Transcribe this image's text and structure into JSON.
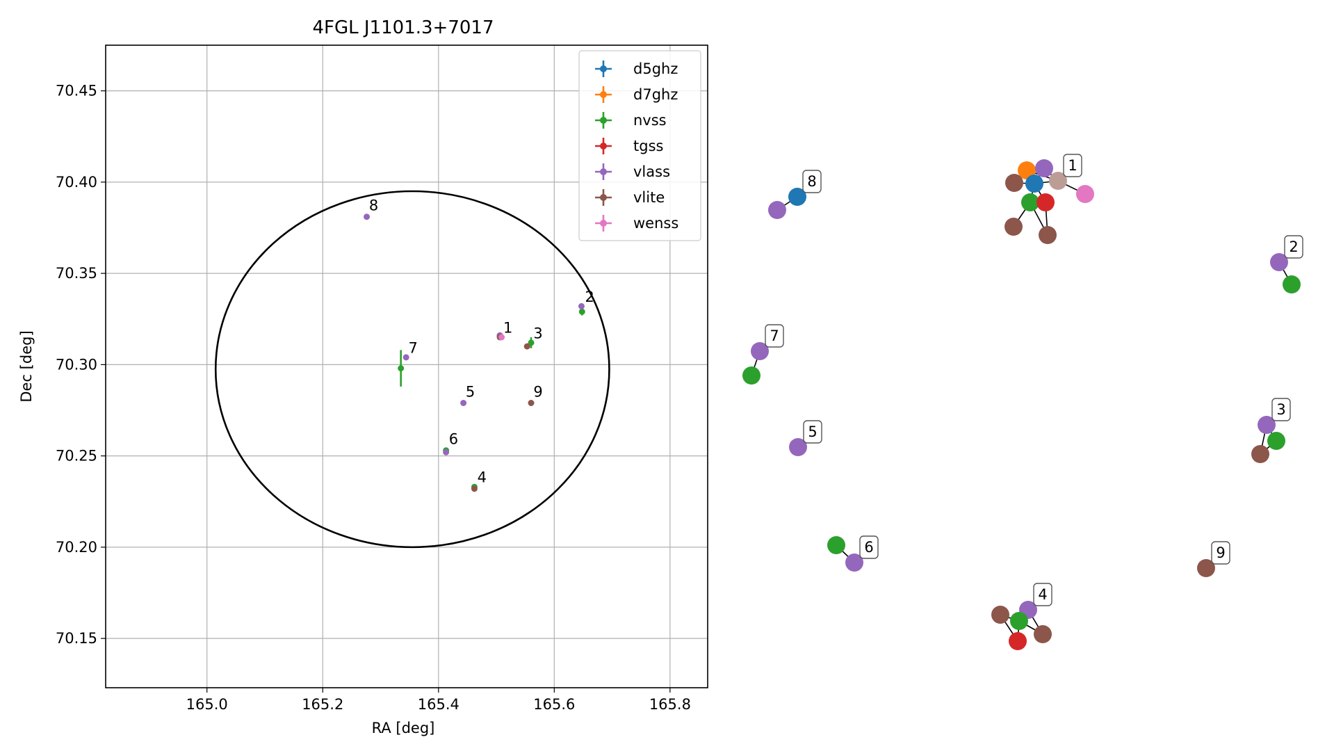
{
  "chart_data": [
    {
      "type": "scatter",
      "title": "4FGL J1101.3+7017",
      "xlabel": "RA [deg]",
      "ylabel": "Dec [deg]",
      "xlim": [
        164.825,
        165.865
      ],
      "ylim": [
        70.123,
        70.475
      ],
      "xticks": [
        165.0,
        165.2,
        165.4,
        165.6,
        165.8
      ],
      "xtick_labels": [
        "165.0",
        "165.2",
        "165.4",
        "165.6",
        "165.8"
      ],
      "yticks": [
        70.15,
        70.2,
        70.25,
        70.3,
        70.35,
        70.4,
        70.45
      ],
      "ytick_labels": [
        "70.15",
        "70.20",
        "70.25",
        "70.30",
        "70.35",
        "70.40",
        "70.45"
      ],
      "grid": true,
      "legend_position": "top-right",
      "error_ellipse": {
        "center": [
          165.355,
          70.2975
        ],
        "semi_axis_ra": 0.34,
        "semi_axis_dec": 0.0975
      },
      "series": [
        {
          "name": "d5ghz",
          "color": "#1f77b4",
          "points": []
        },
        {
          "name": "d7ghz",
          "color": "#ff7f0e",
          "points": []
        },
        {
          "name": "nvss",
          "color": "#2ca02c",
          "points": [
            {
              "x": 165.648,
              "y": 70.329,
              "yerr": 0.002
            },
            {
              "x": 165.56,
              "y": 70.312,
              "yerr": 0.003
            },
            {
              "x": 165.335,
              "y": 70.298,
              "yerr": 0.01
            },
            {
              "x": 165.413,
              "y": 70.253,
              "yerr": 0.001
            },
            {
              "x": 165.462,
              "y": 70.233,
              "yerr": 0.0
            }
          ]
        },
        {
          "name": "tgss",
          "color": "#d62728",
          "points": [
            {
              "x": 165.506,
              "y": 70.316,
              "yerr": 0.0
            }
          ]
        },
        {
          "name": "vlass",
          "color": "#9467bd",
          "points": [
            {
              "x": 165.276,
              "y": 70.381,
              "yerr": 0.0
            },
            {
              "x": 165.647,
              "y": 70.332,
              "yerr": 0.0
            },
            {
              "x": 165.506,
              "y": 70.316,
              "yerr": 0.0
            },
            {
              "x": 165.344,
              "y": 70.304,
              "yerr": 0.0
            },
            {
              "x": 165.443,
              "y": 70.279,
              "yerr": 0.0
            },
            {
              "x": 165.413,
              "y": 70.252,
              "yerr": 0.0
            }
          ]
        },
        {
          "name": "vlite",
          "color": "#8c564b",
          "points": [
            {
              "x": 165.553,
              "y": 70.31,
              "yerr": 0.0
            },
            {
              "x": 165.56,
              "y": 70.279,
              "yerr": 0.0
            },
            {
              "x": 165.462,
              "y": 70.232,
              "yerr": 0.0
            },
            {
              "x": 165.506,
              "y": 70.315,
              "yerr": 0.0
            }
          ]
        },
        {
          "name": "wenss",
          "color": "#e377c2",
          "points": [
            {
              "x": 165.509,
              "y": 70.315,
              "yerr": 0.0
            }
          ]
        }
      ],
      "source_labels": [
        {
          "text": "1",
          "x": 165.512,
          "y": 70.316
        },
        {
          "text": "2",
          "x": 165.653,
          "y": 70.333
        },
        {
          "text": "3",
          "x": 165.564,
          "y": 70.313
        },
        {
          "text": "4",
          "x": 165.467,
          "y": 70.234
        },
        {
          "text": "5",
          "x": 165.447,
          "y": 70.281
        },
        {
          "text": "6",
          "x": 165.418,
          "y": 70.255
        },
        {
          "text": "7",
          "x": 165.348,
          "y": 70.305
        },
        {
          "text": "8",
          "x": 165.28,
          "y": 70.383
        },
        {
          "text": "9",
          "x": 165.564,
          "y": 70.281
        }
      ]
    },
    {
      "type": "network",
      "nodes": [
        {
          "id": "n8a",
          "color": "#9467bd"
        },
        {
          "id": "n8b",
          "color": "#1f77b4"
        },
        {
          "id": "n1a",
          "color": "#ff7f0e"
        },
        {
          "id": "n1b",
          "color": "#9467bd"
        },
        {
          "id": "n1c",
          "color": "#1f77b4"
        },
        {
          "id": "n1d",
          "color": "#8c564b"
        },
        {
          "id": "n1e",
          "color": "#2ca02c"
        },
        {
          "id": "n1f",
          "color": "#d62728"
        },
        {
          "id": "n1g",
          "color": "#8c564b"
        },
        {
          "id": "n1h",
          "color": "#8c564b"
        },
        {
          "id": "n1i",
          "color": "#e377c2"
        },
        {
          "id": "n1j",
          "color": "#bc9d96"
        },
        {
          "id": "n2a",
          "color": "#9467bd"
        },
        {
          "id": "n2b",
          "color": "#2ca02c"
        },
        {
          "id": "n7a",
          "color": "#9467bd"
        },
        {
          "id": "n7b",
          "color": "#2ca02c"
        },
        {
          "id": "n5a",
          "color": "#9467bd"
        },
        {
          "id": "n3a",
          "color": "#9467bd"
        },
        {
          "id": "n3b",
          "color": "#2ca02c"
        },
        {
          "id": "n3c",
          "color": "#8c564b"
        },
        {
          "id": "n6a",
          "color": "#2ca02c"
        },
        {
          "id": "n6b",
          "color": "#9467bd"
        },
        {
          "id": "n9a",
          "color": "#8c564b"
        },
        {
          "id": "n4a",
          "color": "#9467bd"
        },
        {
          "id": "n4b",
          "color": "#8c564b"
        },
        {
          "id": "n4c",
          "color": "#2ca02c"
        },
        {
          "id": "n4d",
          "color": "#8c564b"
        },
        {
          "id": "n4e",
          "color": "#d62728"
        }
      ],
      "edges": [
        [
          "n8a",
          "n8b"
        ],
        [
          "n1c",
          "n1a"
        ],
        [
          "n1c",
          "n1b"
        ],
        [
          "n1c",
          "n1d"
        ],
        [
          "n1c",
          "n1e"
        ],
        [
          "n1c",
          "n1f"
        ],
        [
          "n1c",
          "n1j"
        ],
        [
          "n1e",
          "n1g"
        ],
        [
          "n1e",
          "n1h"
        ],
        [
          "n1e",
          "n1f"
        ],
        [
          "n1f",
          "n1h"
        ],
        [
          "n1j",
          "n1i"
        ],
        [
          "n1b",
          "n1j"
        ],
        [
          "n1a",
          "n1j"
        ],
        [
          "n2a",
          "n2b"
        ],
        [
          "n7a",
          "n7b"
        ],
        [
          "n3a",
          "n3b"
        ],
        [
          "n3a",
          "n3c"
        ],
        [
          "n3b",
          "n3c"
        ],
        [
          "n6a",
          "n6b"
        ],
        [
          "n4c",
          "n4a"
        ],
        [
          "n4c",
          "n4b"
        ],
        [
          "n4c",
          "n4d"
        ],
        [
          "n4c",
          "n4e"
        ],
        [
          "n4b",
          "n4e"
        ],
        [
          "n4a",
          "n4d"
        ]
      ],
      "labels": [
        {
          "text": "1",
          "node": "n1j"
        },
        {
          "text": "2",
          "node": "n2a"
        },
        {
          "text": "3",
          "node": "n3a"
        },
        {
          "text": "4",
          "node": "n4a"
        },
        {
          "text": "5",
          "node": "n5a"
        },
        {
          "text": "6",
          "node": "n6b"
        },
        {
          "text": "7",
          "node": "n7a"
        },
        {
          "text": "8",
          "node": "n8b"
        },
        {
          "text": "9",
          "node": "n9a"
        }
      ]
    }
  ]
}
